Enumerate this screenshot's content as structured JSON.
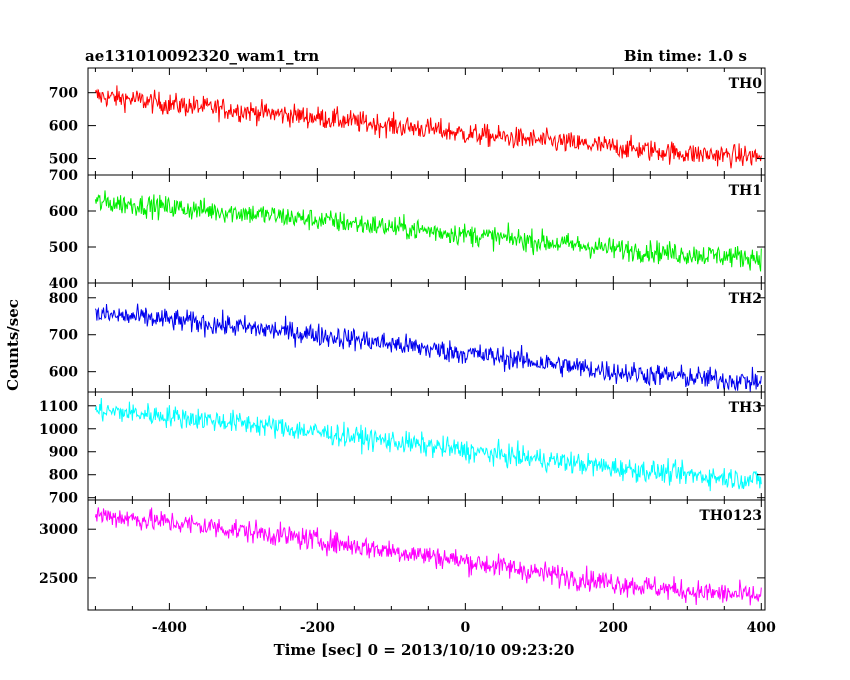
{
  "chart_data": {
    "type": "line",
    "title": "ae131010092320_wam1_trn",
    "subtitle": "Bin time: 1.0 s",
    "xlabel": "Time [sec] 0 = 2013/10/10 09:23:20",
    "ylabel": "Counts/sec",
    "xlim": [
      -510,
      405
    ],
    "xticks": [
      -400,
      -200,
      0,
      200,
      400
    ],
    "legend": "none",
    "panels": [
      {
        "name": "TH0",
        "color": "#ff0000",
        "ylim": [
          450,
          775
        ],
        "yticks": [
          500,
          600,
          700
        ],
        "series": {
          "x": [
            -500,
            -450,
            -400,
            -350,
            -300,
            -250,
            -200,
            -150,
            -100,
            -50,
            0,
            50,
            100,
            150,
            200,
            250,
            300,
            350,
            400
          ],
          "y": [
            690,
            680,
            665,
            655,
            645,
            635,
            625,
            612,
            600,
            590,
            575,
            565,
            555,
            545,
            535,
            525,
            515,
            510,
            505
          ]
        }
      },
      {
        "name": "TH1",
        "color": "#00ee00",
        "ylim": [
          400,
          700
        ],
        "yticks": [
          400,
          500,
          600,
          700
        ],
        "series": {
          "x": [
            -500,
            -450,
            -400,
            -350,
            -300,
            -250,
            -200,
            -150,
            -100,
            -50,
            0,
            50,
            100,
            150,
            200,
            250,
            300,
            350,
            400
          ],
          "y": [
            625,
            618,
            610,
            602,
            595,
            585,
            575,
            565,
            555,
            545,
            535,
            525,
            515,
            505,
            495,
            488,
            480,
            475,
            470
          ]
        }
      },
      {
        "name": "TH2",
        "color": "#0000ee",
        "ylim": [
          545,
          840
        ],
        "yticks": [
          600,
          700,
          800
        ],
        "series": {
          "x": [
            -500,
            -450,
            -400,
            -350,
            -300,
            -250,
            -200,
            -150,
            -100,
            -50,
            0,
            50,
            100,
            150,
            200,
            250,
            300,
            350,
            400
          ],
          "y": [
            755,
            748,
            740,
            730,
            720,
            710,
            700,
            688,
            675,
            662,
            650,
            638,
            625,
            612,
            600,
            592,
            585,
            578,
            572
          ]
        }
      },
      {
        "name": "TH3",
        "color": "#00ffff",
        "ylim": [
          690,
          1160
        ],
        "yticks": [
          700,
          800,
          900,
          1000,
          1100
        ],
        "series": {
          "x": [
            -500,
            -450,
            -400,
            -350,
            -300,
            -250,
            -200,
            -150,
            -100,
            -50,
            0,
            50,
            100,
            150,
            200,
            250,
            300,
            350,
            400
          ],
          "y": [
            1080,
            1068,
            1055,
            1040,
            1025,
            1005,
            985,
            965,
            945,
            925,
            905,
            885,
            868,
            850,
            830,
            815,
            800,
            788,
            775
          ]
        }
      },
      {
        "name": "TH0123",
        "color": "#ff00ff",
        "ylim": [
          2170,
          3300
        ],
        "yticks": [
          2500,
          3000
        ],
        "series": {
          "x": [
            -500,
            -450,
            -400,
            -350,
            -300,
            -250,
            -200,
            -150,
            -100,
            -50,
            0,
            50,
            100,
            150,
            200,
            250,
            300,
            350,
            400
          ],
          "y": [
            3150,
            3110,
            3070,
            3030,
            2985,
            2935,
            2885,
            2830,
            2780,
            2730,
            2670,
            2615,
            2555,
            2500,
            2450,
            2405,
            2365,
            2335,
            2310
          ]
        }
      }
    ]
  }
}
